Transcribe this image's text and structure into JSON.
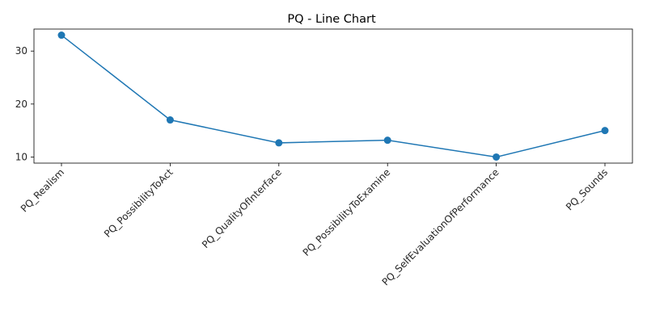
{
  "chart_data": {
    "type": "line",
    "title": "PQ - Line Chart",
    "xlabel": "",
    "ylabel": "",
    "categories": [
      "PQ_Realism",
      "PQ_PossibilityToAct",
      "PQ_QualityOfInterface",
      "PQ_PossibilityToExamine",
      "PQ_SelfEvaluationOfPerformance",
      "PQ_Sounds"
    ],
    "series": [
      {
        "values": [
          33.0,
          17.0,
          12.67,
          13.17,
          10.0,
          15.0
        ]
      }
    ],
    "yticks": [
      10,
      20,
      30
    ],
    "ylim": [
      8.85,
      34.15
    ],
    "grid": false,
    "line_color": "#1f77b4",
    "marker": "circle"
  }
}
